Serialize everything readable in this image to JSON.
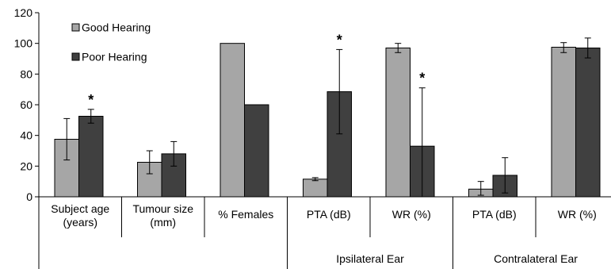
{
  "chart_data": {
    "type": "bar",
    "ylim": [
      0,
      120
    ],
    "yticks": [
      0,
      20,
      40,
      60,
      80,
      100,
      120
    ],
    "grid": false,
    "legend_position": "top-left",
    "categories": [
      {
        "lines": [
          "Subject age",
          "(years)"
        ]
      },
      {
        "lines": [
          "Tumour size",
          "(mm)"
        ]
      },
      {
        "lines": [
          "% Females"
        ]
      },
      {
        "lines": [
          "PTA (dB)"
        ]
      },
      {
        "lines": [
          "WR (%)"
        ]
      },
      {
        "lines": [
          "PTA (dB)"
        ]
      },
      {
        "lines": [
          "WR (%)"
        ]
      }
    ],
    "groups": [
      {
        "label": "",
        "span": [
          0,
          2
        ]
      },
      {
        "label": "Ipsilateral Ear",
        "span": [
          3,
          4
        ]
      },
      {
        "label": "Contralateral Ear",
        "span": [
          5,
          6
        ]
      }
    ],
    "series": [
      {
        "name": "Good Hearing",
        "color": "#a6a6a6",
        "values": [
          37.5,
          22.5,
          100,
          11.5,
          97,
          5,
          97.5
        ],
        "error": [
          [
            24,
            51
          ],
          [
            15,
            30
          ],
          null,
          [
            10.5,
            12.5
          ],
          [
            94,
            100
          ],
          [
            1,
            10
          ],
          [
            94,
            100.5
          ]
        ]
      },
      {
        "name": "Poor Hearing",
        "color": "#404040",
        "values": [
          52.5,
          28,
          60,
          68.5,
          33,
          14,
          97
        ],
        "error": [
          [
            48,
            57
          ],
          [
            20,
            36
          ],
          null,
          [
            41,
            96
          ],
          [
            0,
            71
          ],
          [
            2.5,
            25.5
          ],
          [
            90.5,
            103.5
          ]
        ]
      }
    ],
    "significance": [
      {
        "category": 0,
        "series": 1,
        "marker": "*"
      },
      {
        "category": 3,
        "series": 1,
        "marker": "*"
      },
      {
        "category": 4,
        "series": 1,
        "marker": "*"
      }
    ]
  }
}
